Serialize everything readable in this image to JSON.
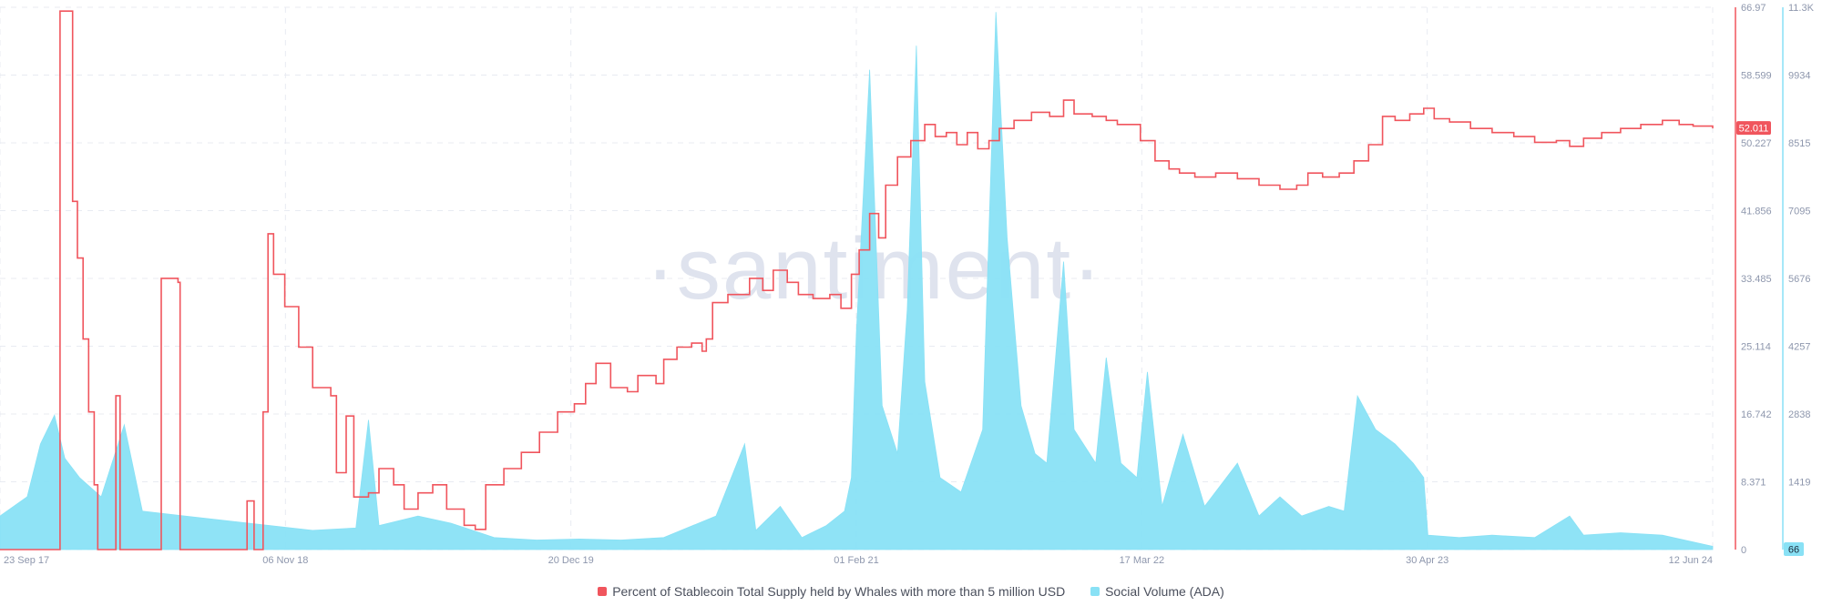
{
  "watermark": "·santiment·",
  "chart_data": {
    "type": "area+line",
    "x_range": [
      "2017-09-23",
      "2024-06-12"
    ],
    "x_ticks": [
      "23 Sep 17",
      "06 Nov 18",
      "20 Dec 19",
      "01 Feb 21",
      "17 Mar 22",
      "30 Apr 23",
      "12 Jun 24"
    ],
    "y_left": {
      "ticks": [
        "66.97",
        "58.599",
        "50.227",
        "41.856",
        "33.485",
        "25.114",
        "16.742",
        "8.371",
        "0"
      ],
      "range": [
        0,
        66.97
      ],
      "current_label": "52.011",
      "color": "#f0555d"
    },
    "y_right": {
      "ticks": [
        "11.3K",
        "9934",
        "8515",
        "7095",
        "5676",
        "4257",
        "2838",
        "1419",
        "0"
      ],
      "range": [
        0,
        11300
      ],
      "current_label": "66",
      "color": "#89e1f5"
    },
    "series": [
      {
        "name": "Percent of Stablecoin Total Supply held by Whales with more than 5 million USD",
        "axis": "left",
        "color": "#f0555d",
        "points": [
          [
            "2017-09-23",
            0
          ],
          [
            "2017-12-10",
            0
          ],
          [
            "2017-12-18",
            66.5
          ],
          [
            "2017-12-28",
            66.5
          ],
          [
            "2018-01-05",
            43
          ],
          [
            "2018-01-12",
            36
          ],
          [
            "2018-01-20",
            26
          ],
          [
            "2018-01-28",
            17
          ],
          [
            "2018-02-05",
            8
          ],
          [
            "2018-02-10",
            0
          ],
          [
            "2018-03-05",
            0
          ],
          [
            "2018-03-08",
            19
          ],
          [
            "2018-03-14",
            0
          ],
          [
            "2018-05-10",
            0
          ],
          [
            "2018-05-12",
            33.5
          ],
          [
            "2018-06-05",
            33
          ],
          [
            "2018-06-08",
            0
          ],
          [
            "2018-09-10",
            0
          ],
          [
            "2018-09-12",
            6
          ],
          [
            "2018-09-22",
            0
          ],
          [
            "2018-10-02",
            0
          ],
          [
            "2018-10-05",
            17
          ],
          [
            "2018-10-12",
            39
          ],
          [
            "2018-10-20",
            34
          ],
          [
            "2018-11-05",
            30
          ],
          [
            "2018-11-25",
            25
          ],
          [
            "2018-12-15",
            20
          ],
          [
            "2019-01-10",
            19
          ],
          [
            "2019-01-18",
            9.5
          ],
          [
            "2019-02-01",
            16.5
          ],
          [
            "2019-02-12",
            6.5
          ],
          [
            "2019-03-05",
            7
          ],
          [
            "2019-03-20",
            10
          ],
          [
            "2019-04-10",
            8
          ],
          [
            "2019-04-25",
            5
          ],
          [
            "2019-05-15",
            7
          ],
          [
            "2019-06-05",
            8
          ],
          [
            "2019-06-25",
            5
          ],
          [
            "2019-07-20",
            3
          ],
          [
            "2019-08-05",
            2.5
          ],
          [
            "2019-08-20",
            8
          ],
          [
            "2019-09-15",
            10
          ],
          [
            "2019-10-10",
            12
          ],
          [
            "2019-11-05",
            14.5
          ],
          [
            "2019-12-01",
            17
          ],
          [
            "2019-12-25",
            18
          ],
          [
            "2020-01-10",
            20.5
          ],
          [
            "2020-01-25",
            23
          ],
          [
            "2020-02-15",
            20
          ],
          [
            "2020-03-10",
            19.5
          ],
          [
            "2020-03-25",
            21.5
          ],
          [
            "2020-04-20",
            20.5
          ],
          [
            "2020-05-01",
            23.5
          ],
          [
            "2020-05-20",
            25
          ],
          [
            "2020-06-10",
            25.5
          ],
          [
            "2020-06-25",
            24.5
          ],
          [
            "2020-07-01",
            26
          ],
          [
            "2020-07-10",
            30.5
          ],
          [
            "2020-08-01",
            31.5
          ],
          [
            "2020-09-01",
            33.5
          ],
          [
            "2020-09-20",
            32
          ],
          [
            "2020-10-05",
            34.5
          ],
          [
            "2020-10-25",
            33
          ],
          [
            "2020-11-10",
            31.5
          ],
          [
            "2020-12-01",
            31
          ],
          [
            "2020-12-25",
            31.5
          ],
          [
            "2021-01-10",
            29.8
          ],
          [
            "2021-01-25",
            34
          ],
          [
            "2021-02-05",
            37
          ],
          [
            "2021-02-20",
            41.5
          ],
          [
            "2021-03-05",
            38.5
          ],
          [
            "2021-03-15",
            45
          ],
          [
            "2021-04-01",
            48.5
          ],
          [
            "2021-04-20",
            50.5
          ],
          [
            "2021-05-10",
            52.5
          ],
          [
            "2021-05-25",
            51
          ],
          [
            "2021-06-10",
            51.5
          ],
          [
            "2021-06-25",
            50
          ],
          [
            "2021-07-10",
            51.5
          ],
          [
            "2021-07-25",
            49.5
          ],
          [
            "2021-08-10",
            50.5
          ],
          [
            "2021-08-25",
            52
          ],
          [
            "2021-09-15",
            53
          ],
          [
            "2021-10-10",
            54
          ],
          [
            "2021-11-05",
            53.5
          ],
          [
            "2021-11-25",
            55.5
          ],
          [
            "2021-12-10",
            53.8
          ],
          [
            "2022-01-05",
            53.5
          ],
          [
            "2022-01-25",
            53
          ],
          [
            "2022-02-10",
            52.5
          ],
          [
            "2022-03-01",
            52.5
          ],
          [
            "2022-03-15",
            50.5
          ],
          [
            "2022-04-05",
            48
          ],
          [
            "2022-04-25",
            47
          ],
          [
            "2022-05-10",
            46.5
          ],
          [
            "2022-06-01",
            46
          ],
          [
            "2022-07-01",
            46.5
          ],
          [
            "2022-08-01",
            45.8
          ],
          [
            "2022-09-01",
            45
          ],
          [
            "2022-10-01",
            44.5
          ],
          [
            "2022-10-25",
            45
          ],
          [
            "2022-11-10",
            46.5
          ],
          [
            "2022-12-01",
            46
          ],
          [
            "2022-12-25",
            46.5
          ],
          [
            "2023-01-15",
            48
          ],
          [
            "2023-02-05",
            50
          ],
          [
            "2023-02-25",
            53.5
          ],
          [
            "2023-03-15",
            53
          ],
          [
            "2023-04-05",
            53.8
          ],
          [
            "2023-04-25",
            54.5
          ],
          [
            "2023-05-10",
            53.2
          ],
          [
            "2023-06-01",
            52.8
          ],
          [
            "2023-07-01",
            52
          ],
          [
            "2023-08-01",
            51.5
          ],
          [
            "2023-09-01",
            51
          ],
          [
            "2023-10-01",
            50.3
          ],
          [
            "2023-11-01",
            50.5
          ],
          [
            "2023-11-20",
            49.8
          ],
          [
            "2023-12-10",
            50.8
          ],
          [
            "2024-01-05",
            51.5
          ],
          [
            "2024-02-01",
            52
          ],
          [
            "2024-03-01",
            52.5
          ],
          [
            "2024-04-01",
            53
          ],
          [
            "2024-04-25",
            52.5
          ],
          [
            "2024-05-15",
            52.3
          ],
          [
            "2024-06-12",
            52.011
          ]
        ]
      },
      {
        "name": "Social Volume (ADA)",
        "axis": "right",
        "color": "#89e1f5",
        "points": [
          [
            "2017-09-23",
            700
          ],
          [
            "2017-11-01",
            1100
          ],
          [
            "2017-11-20",
            2200
          ],
          [
            "2017-12-10",
            2800
          ],
          [
            "2017-12-25",
            1900
          ],
          [
            "2018-01-15",
            1500
          ],
          [
            "2018-02-15",
            1100
          ],
          [
            "2018-03-20",
            2600
          ],
          [
            "2018-04-15",
            800
          ],
          [
            "2018-06-15",
            700
          ],
          [
            "2018-08-15",
            600
          ],
          [
            "2018-10-15",
            500
          ],
          [
            "2018-12-15",
            400
          ],
          [
            "2019-02-15",
            450
          ],
          [
            "2019-03-05",
            2700
          ],
          [
            "2019-03-20",
            500
          ],
          [
            "2019-05-15",
            700
          ],
          [
            "2019-07-01",
            550
          ],
          [
            "2019-09-01",
            250
          ],
          [
            "2019-11-01",
            200
          ],
          [
            "2020-01-01",
            220
          ],
          [
            "2020-03-01",
            200
          ],
          [
            "2020-05-01",
            250
          ],
          [
            "2020-07-15",
            700
          ],
          [
            "2020-08-25",
            2200
          ],
          [
            "2020-09-10",
            400
          ],
          [
            "2020-10-15",
            900
          ],
          [
            "2020-11-15",
            250
          ],
          [
            "2020-12-20",
            500
          ],
          [
            "2021-01-15",
            800
          ],
          [
            "2021-01-25",
            1500
          ],
          [
            "2021-02-01",
            4500
          ],
          [
            "2021-02-20",
            10000
          ],
          [
            "2021-03-10",
            3000
          ],
          [
            "2021-04-01",
            2000
          ],
          [
            "2021-04-15",
            5000
          ],
          [
            "2021-04-28",
            10500
          ],
          [
            "2021-05-10",
            3500
          ],
          [
            "2021-06-01",
            1500
          ],
          [
            "2021-07-01",
            1200
          ],
          [
            "2021-08-01",
            2500
          ],
          [
            "2021-08-20",
            11200
          ],
          [
            "2021-09-05",
            6500
          ],
          [
            "2021-09-25",
            3000
          ],
          [
            "2021-10-15",
            2000
          ],
          [
            "2021-11-01",
            1800
          ],
          [
            "2021-11-25",
            6000
          ],
          [
            "2021-12-10",
            2500
          ],
          [
            "2022-01-10",
            1800
          ],
          [
            "2022-01-25",
            4000
          ],
          [
            "2022-02-15",
            1800
          ],
          [
            "2022-03-10",
            1500
          ],
          [
            "2022-03-25",
            3700
          ],
          [
            "2022-04-15",
            900
          ],
          [
            "2022-05-15",
            2400
          ],
          [
            "2022-06-15",
            900
          ],
          [
            "2022-08-01",
            1800
          ],
          [
            "2022-09-01",
            700
          ],
          [
            "2022-10-01",
            1100
          ],
          [
            "2022-11-01",
            700
          ],
          [
            "2022-12-10",
            900
          ],
          [
            "2023-01-01",
            800
          ],
          [
            "2023-01-20",
            3200
          ],
          [
            "2023-02-15",
            2500
          ],
          [
            "2023-03-15",
            2200
          ],
          [
            "2023-04-10",
            1800
          ],
          [
            "2023-04-25",
            1500
          ],
          [
            "2023-05-01",
            300
          ],
          [
            "2023-06-15",
            250
          ],
          [
            "2023-08-01",
            300
          ],
          [
            "2023-10-01",
            250
          ],
          [
            "2023-11-20",
            700
          ],
          [
            "2023-12-10",
            300
          ],
          [
            "2024-02-01",
            350
          ],
          [
            "2024-04-01",
            300
          ],
          [
            "2024-06-12",
            66
          ]
        ]
      }
    ],
    "grid": true,
    "legend_position": "bottom"
  }
}
